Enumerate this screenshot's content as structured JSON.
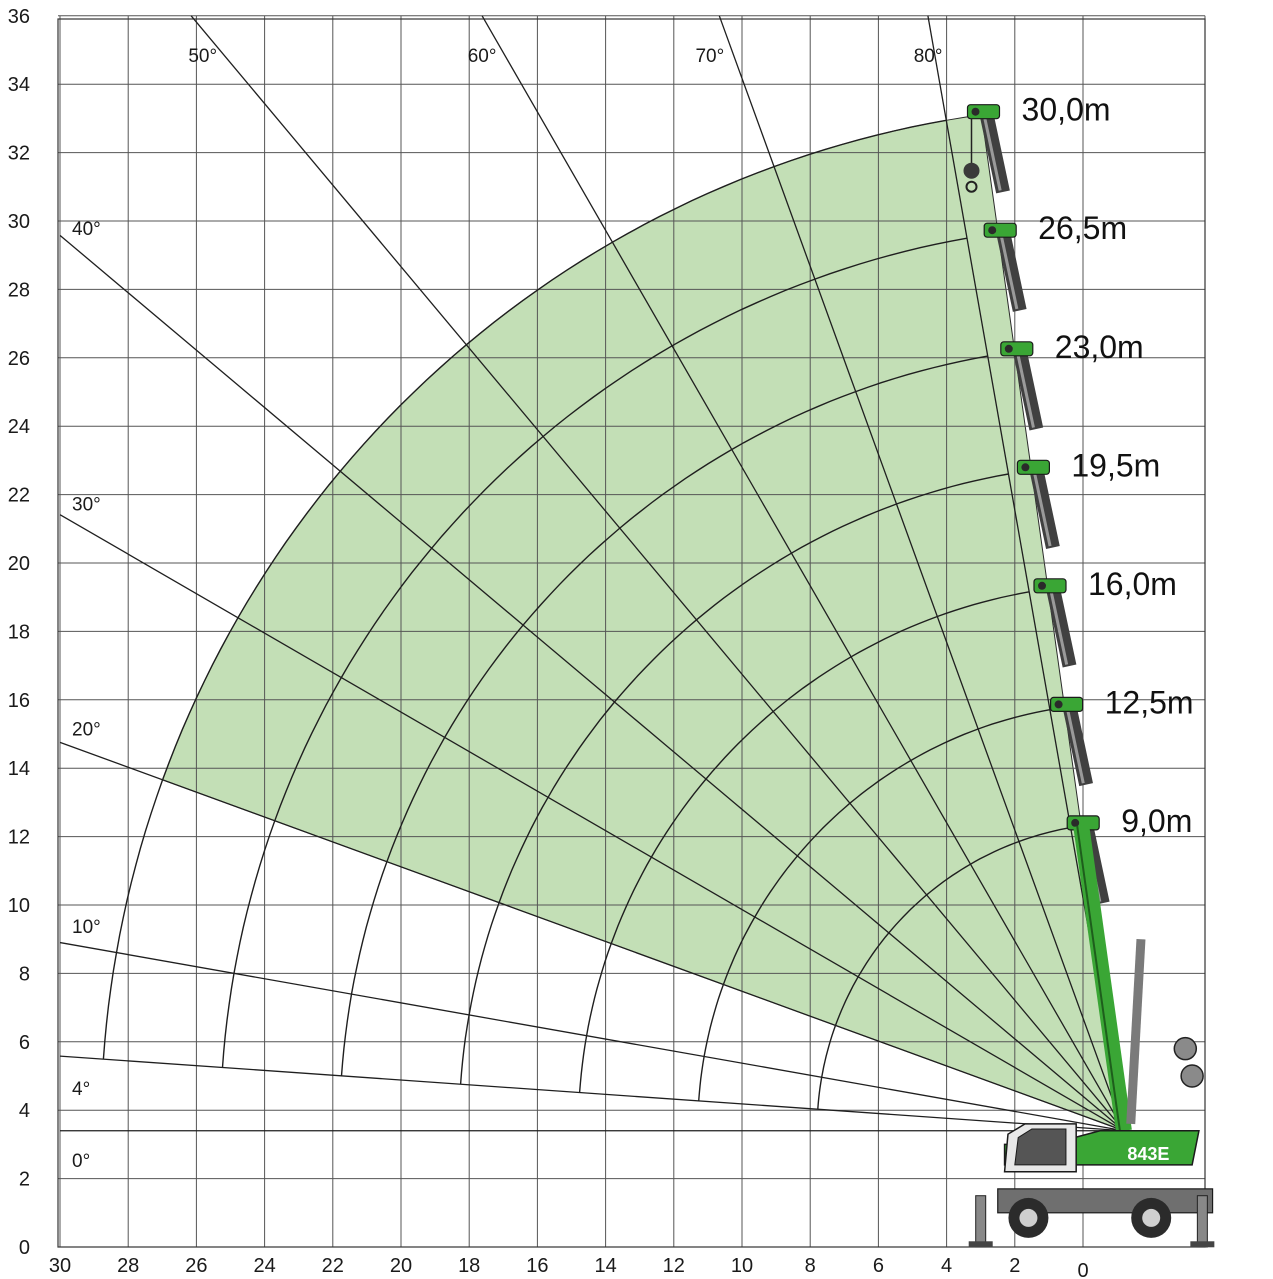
{
  "chart_data": {
    "type": "diagram",
    "x_ticks": [
      30,
      28,
      26,
      24,
      22,
      20,
      18,
      16,
      14,
      12,
      10,
      8,
      6,
      4,
      2,
      0
    ],
    "y_ticks": [
      0,
      2,
      4,
      6,
      8,
      10,
      12,
      14,
      16,
      18,
      20,
      22,
      24,
      26,
      28,
      30,
      32,
      34,
      36
    ],
    "xlim": [
      -2.5,
      30
    ],
    "ylim": [
      0,
      36
    ],
    "pivot": {
      "x": -1.2,
      "y": 3.4
    },
    "angle_lines": [
      {
        "label": "0°",
        "angle": 0
      },
      {
        "label": "4°",
        "angle": 4
      },
      {
        "label": "10°",
        "angle": 10
      },
      {
        "label": "20°",
        "angle": 20
      },
      {
        "label": "30°",
        "angle": 30
      },
      {
        "label": "40°",
        "angle": 40
      },
      {
        "label": "50°",
        "angle": 50
      },
      {
        "label": "60°",
        "angle": 60
      },
      {
        "label": "70°",
        "angle": 70
      },
      {
        "label": "80°",
        "angle": 80
      }
    ],
    "boom_lengths": [
      {
        "label": "9,0m",
        "length": 9.0
      },
      {
        "label": "12,5m",
        "length": 12.5
      },
      {
        "label": "16,0m",
        "length": 16.0
      },
      {
        "label": "19,5m",
        "length": 19.5
      },
      {
        "label": "23,0m",
        "length": 23.0
      },
      {
        "label": "26,5m",
        "length": 26.5
      },
      {
        "label": "30,0m",
        "length": 30.0
      }
    ],
    "working_range": {
      "min_angle": 20,
      "max_angle": 82,
      "max_length": 30.0
    },
    "colors": {
      "range_fill": "#c3dfb6",
      "machine_green": "#3aa635",
      "grid": "#555555"
    },
    "machine": {
      "model_label": "843E"
    }
  }
}
